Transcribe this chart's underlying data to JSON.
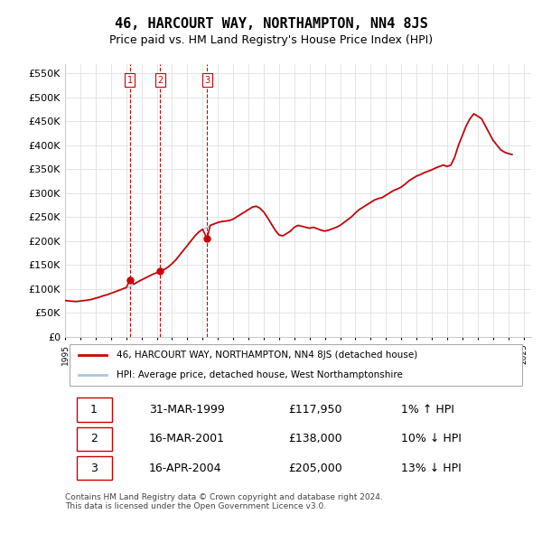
{
  "title": "46, HARCOURT WAY, NORTHAMPTON, NN4 8JS",
  "subtitle": "Price paid vs. HM Land Registry's House Price Index (HPI)",
  "title_fontsize": 12,
  "subtitle_fontsize": 10,
  "ylabel_ticks": [
    "£0",
    "£50K",
    "£100K",
    "£150K",
    "£200K",
    "£250K",
    "£300K",
    "£350K",
    "£400K",
    "£450K",
    "£500K",
    "£550K"
  ],
  "ytick_values": [
    0,
    50000,
    100000,
    150000,
    200000,
    250000,
    300000,
    350000,
    400000,
    450000,
    500000,
    550000
  ],
  "ylim": [
    0,
    570000
  ],
  "xlim_start": 1995.0,
  "xlim_end": 2025.5,
  "hpi_color": "#adc6e0",
  "price_color": "#cc0000",
  "vline_color": "#cc0000",
  "grid_color": "#e0e0e0",
  "background_color": "#ffffff",
  "purchases": [
    {
      "label": "1",
      "date_x": 1999.25,
      "price": 117950
    },
    {
      "label": "2",
      "date_x": 2001.21,
      "price": 138000
    },
    {
      "label": "3",
      "date_x": 2004.29,
      "price": 205000
    }
  ],
  "legend_property_label": "46, HARCOURT WAY, NORTHAMPTON, NN4 8JS (detached house)",
  "legend_hpi_label": "HPI: Average price, detached house, West Northamptonshire",
  "table_rows": [
    {
      "num": "1",
      "date": "31-MAR-1999",
      "price": "£117,950",
      "hpi": "1% ↑ HPI"
    },
    {
      "num": "2",
      "date": "16-MAR-2001",
      "price": "£138,000",
      "hpi": "10% ↓ HPI"
    },
    {
      "num": "3",
      "date": "16-APR-2004",
      "price": "£205,000",
      "hpi": "13% ↓ HPI"
    }
  ],
  "footer": "Contains HM Land Registry data © Crown copyright and database right 2024.\nThis data is licensed under the Open Government Licence v3.0.",
  "hpi_data": {
    "years": [
      1995.0,
      1995.25,
      1995.5,
      1995.75,
      1996.0,
      1996.25,
      1996.5,
      1996.75,
      1997.0,
      1997.25,
      1997.5,
      1997.75,
      1998.0,
      1998.25,
      1998.5,
      1998.75,
      1999.0,
      1999.25,
      1999.5,
      1999.75,
      2000.0,
      2000.25,
      2000.5,
      2000.75,
      2001.0,
      2001.25,
      2001.5,
      2001.75,
      2002.0,
      2002.25,
      2002.5,
      2002.75,
      2003.0,
      2003.25,
      2003.5,
      2003.75,
      2004.0,
      2004.25,
      2004.5,
      2004.75,
      2005.0,
      2005.25,
      2005.5,
      2005.75,
      2006.0,
      2006.25,
      2006.5,
      2006.75,
      2007.0,
      2007.25,
      2007.5,
      2007.75,
      2008.0,
      2008.25,
      2008.5,
      2008.75,
      2009.0,
      2009.25,
      2009.5,
      2009.75,
      2010.0,
      2010.25,
      2010.5,
      2010.75,
      2011.0,
      2011.25,
      2011.5,
      2011.75,
      2012.0,
      2012.25,
      2012.5,
      2012.75,
      2013.0,
      2013.25,
      2013.5,
      2013.75,
      2014.0,
      2014.25,
      2014.5,
      2014.75,
      2015.0,
      2015.25,
      2015.5,
      2015.75,
      2016.0,
      2016.25,
      2016.5,
      2016.75,
      2017.0,
      2017.25,
      2017.5,
      2017.75,
      2018.0,
      2018.25,
      2018.5,
      2018.75,
      2019.0,
      2019.25,
      2019.5,
      2019.75,
      2020.0,
      2020.25,
      2020.5,
      2020.75,
      2021.0,
      2021.25,
      2021.5,
      2021.75,
      2022.0,
      2022.25,
      2022.5,
      2022.75,
      2023.0,
      2023.25,
      2023.5,
      2023.75,
      2024.0,
      2024.25
    ],
    "values": [
      75000,
      74000,
      73500,
      73000,
      74000,
      75000,
      76000,
      77500,
      80000,
      82000,
      85000,
      87000,
      90000,
      93000,
      96000,
      99000,
      102000,
      105000,
      109000,
      114000,
      118000,
      122000,
      126000,
      130000,
      133000,
      136000,
      140000,
      145000,
      152000,
      160000,
      170000,
      180000,
      190000,
      200000,
      210000,
      218000,
      224000,
      228000,
      232000,
      235000,
      238000,
      240000,
      241000,
      242000,
      245000,
      250000,
      255000,
      260000,
      265000,
      270000,
      272000,
      268000,
      260000,
      248000,
      235000,
      222000,
      212000,
      210000,
      215000,
      220000,
      228000,
      232000,
      230000,
      228000,
      226000,
      228000,
      225000,
      222000,
      220000,
      222000,
      225000,
      228000,
      232000,
      238000,
      244000,
      250000,
      258000,
      265000,
      270000,
      275000,
      280000,
      285000,
      288000,
      290000,
      295000,
      300000,
      305000,
      308000,
      312000,
      318000,
      325000,
      330000,
      335000,
      338000,
      342000,
      345000,
      348000,
      352000,
      355000,
      358000,
      355000,
      358000,
      375000,
      400000,
      420000,
      440000,
      455000,
      465000,
      460000,
      455000,
      440000,
      425000,
      410000,
      400000,
      390000,
      385000,
      382000,
      380000
    ]
  },
  "property_hpi_data": {
    "years": [
      1995.0,
      1995.25,
      1995.5,
      1995.75,
      1996.0,
      1996.25,
      1996.5,
      1996.75,
      1997.0,
      1997.25,
      1997.5,
      1997.75,
      1998.0,
      1998.25,
      1998.5,
      1998.75,
      1999.0,
      1999.25,
      1999.5,
      1999.75,
      2000.0,
      2000.25,
      2000.5,
      2000.75,
      2001.0,
      2001.21,
      2001.5,
      2001.75,
      2002.0,
      2002.25,
      2002.5,
      2002.75,
      2003.0,
      2003.25,
      2003.5,
      2003.75,
      2004.0,
      2004.29,
      2004.5,
      2004.75,
      2005.0,
      2005.25,
      2005.5,
      2005.75,
      2006.0,
      2006.25,
      2006.5,
      2006.75,
      2007.0,
      2007.25,
      2007.5,
      2007.75,
      2008.0,
      2008.25,
      2008.5,
      2008.75,
      2009.0,
      2009.25,
      2009.5,
      2009.75,
      2010.0,
      2010.25,
      2010.5,
      2010.75,
      2011.0,
      2011.25,
      2011.5,
      2011.75,
      2012.0,
      2012.25,
      2012.5,
      2012.75,
      2013.0,
      2013.25,
      2013.5,
      2013.75,
      2014.0,
      2014.25,
      2014.5,
      2014.75,
      2015.0,
      2015.25,
      2015.5,
      2015.75,
      2016.0,
      2016.25,
      2016.5,
      2016.75,
      2017.0,
      2017.25,
      2017.5,
      2017.75,
      2018.0,
      2018.25,
      2018.5,
      2018.75,
      2019.0,
      2019.25,
      2019.5,
      2019.75,
      2020.0,
      2020.25,
      2020.5,
      2020.75,
      2021.0,
      2021.25,
      2021.5,
      2021.75,
      2022.0,
      2022.25,
      2022.5,
      2022.75,
      2023.0,
      2023.25,
      2023.5,
      2023.75,
      2024.0,
      2024.25
    ],
    "values": [
      76000,
      75000,
      74500,
      74000,
      75000,
      76000,
      77000,
      78500,
      81000,
      83000,
      86000,
      88000,
      91000,
      94000,
      97000,
      100000,
      103000,
      117950,
      110000,
      115000,
      119000,
      123000,
      127000,
      131000,
      134000,
      138000,
      141000,
      146000,
      153000,
      161000,
      171000,
      181000,
      191000,
      201000,
      211000,
      219000,
      225000,
      205000,
      233000,
      236000,
      239000,
      241000,
      242000,
      243000,
      246000,
      251000,
      256000,
      261000,
      266000,
      271000,
      273000,
      269000,
      261000,
      249000,
      236000,
      223000,
      213000,
      211000,
      216000,
      221000,
      229000,
      233000,
      231000,
      229000,
      227000,
      229000,
      226000,
      223000,
      221000,
      223000,
      226000,
      229000,
      233000,
      239000,
      245000,
      251000,
      259000,
      266000,
      271000,
      276000,
      281000,
      286000,
      289000,
      291000,
      296000,
      301000,
      306000,
      309000,
      313000,
      319000,
      326000,
      331000,
      336000,
      339000,
      343000,
      346000,
      349000,
      353000,
      356000,
      359000,
      356000,
      359000,
      376000,
      401000,
      421000,
      441000,
      456000,
      466000,
      461000,
      456000,
      441000,
      426000,
      411000,
      401000,
      391000,
      386000,
      383000,
      381000
    ]
  }
}
